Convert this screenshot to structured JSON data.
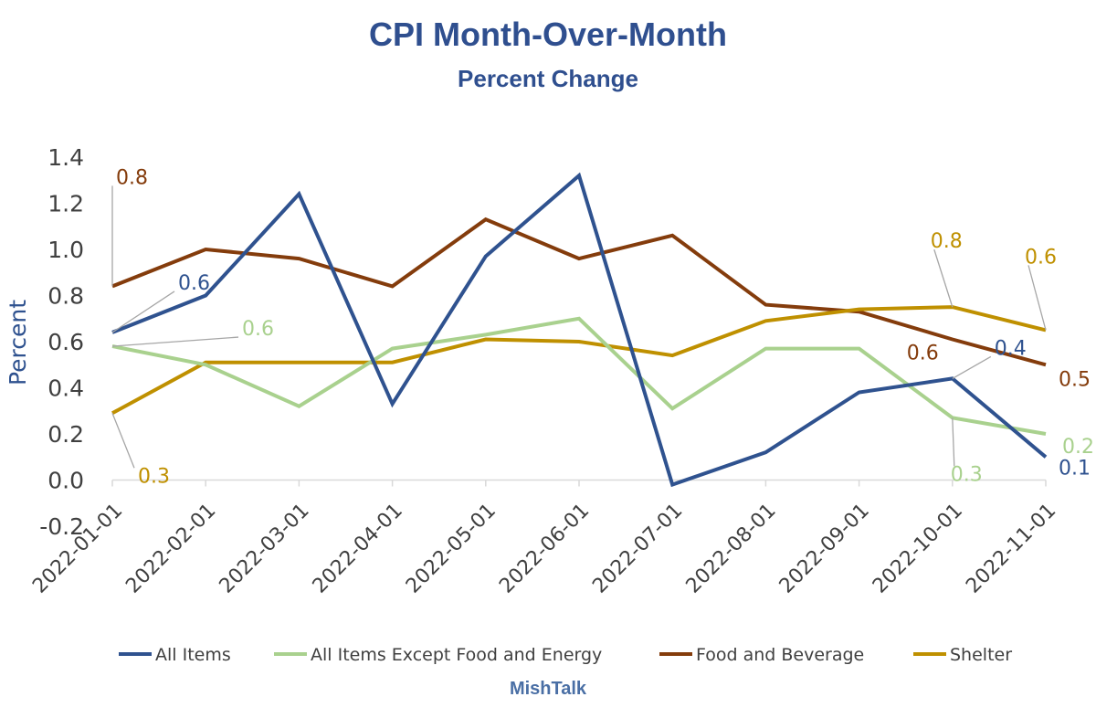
{
  "colors": {
    "title": "#2f4f8f",
    "axis": "#d9d9d9",
    "text": "#404040",
    "leader": "#a6a6a6",
    "footer": "#4a6fa5"
  },
  "chart_data": {
    "type": "line",
    "title": "CPI Month-Over-Month",
    "subtitle": "Percent Change",
    "xlabel": "",
    "ylabel": "Percent",
    "ylim": [
      -0.2,
      1.4
    ],
    "yticks": [
      "-0.2",
      "0.0",
      "0.2",
      "0.4",
      "0.6",
      "0.8",
      "1.0",
      "1.2",
      "1.4"
    ],
    "categories": [
      "2022-01-01",
      "2022-02-01",
      "2022-03-01",
      "2022-04-01",
      "2022-05-01",
      "2022-06-01",
      "2022-07-01",
      "2022-08-01",
      "2022-09-01",
      "2022-10-01",
      "2022-11-01"
    ],
    "grid": false,
    "legend_position": "bottom",
    "series": [
      {
        "name": "All Items",
        "color": "#2f528f",
        "values": [
          0.64,
          0.8,
          1.24,
          0.33,
          0.97,
          1.32,
          -0.02,
          0.12,
          0.38,
          0.44,
          0.1
        ]
      },
      {
        "name": "All Items Except Food and Energy",
        "color": "#a9d18e",
        "values": [
          0.58,
          0.5,
          0.32,
          0.57,
          0.63,
          0.7,
          0.31,
          0.57,
          0.57,
          0.27,
          0.2
        ]
      },
      {
        "name": "Food and Beverage",
        "color": "#843c0c",
        "values": [
          0.84,
          1.0,
          0.96,
          0.84,
          1.13,
          0.96,
          1.06,
          0.76,
          0.73,
          0.61,
          0.5
        ]
      },
      {
        "name": "Shelter",
        "color": "#bf9000",
        "values": [
          0.29,
          0.51,
          0.51,
          0.51,
          0.61,
          0.6,
          0.54,
          0.69,
          0.74,
          0.75,
          0.65
        ]
      }
    ],
    "data_labels": [
      {
        "series": "Food and Beverage",
        "index": 0,
        "text": "0.8"
      },
      {
        "series": "All Items",
        "index": 0,
        "text": "0.6"
      },
      {
        "series": "All Items Except Food and Energy",
        "index": 0,
        "text": "0.6"
      },
      {
        "series": "Shelter",
        "index": 0,
        "text": "0.3"
      },
      {
        "series": "Shelter",
        "index": 9,
        "text": "0.8"
      },
      {
        "series": "Shelter",
        "index": 10,
        "text": "0.6"
      },
      {
        "series": "Food and Beverage",
        "index": 9,
        "text": "0.6"
      },
      {
        "series": "Food and Beverage",
        "index": 10,
        "text": "0.5"
      },
      {
        "series": "All Items",
        "index": 9,
        "text": "0.4"
      },
      {
        "series": "All Items Except Food and Energy",
        "index": 10,
        "text": "0.2"
      },
      {
        "series": "All Items Except Food and Energy",
        "index": 9,
        "text": "0.3"
      },
      {
        "series": "All Items",
        "index": 10,
        "text": "0.1"
      }
    ]
  },
  "footer": "MishTalk"
}
